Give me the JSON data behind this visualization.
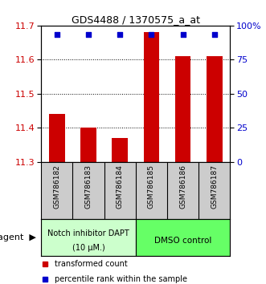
{
  "title": "GDS4488 / 1370575_a_at",
  "samples": [
    "GSM786182",
    "GSM786183",
    "GSM786184",
    "GSM786185",
    "GSM786186",
    "GSM786187"
  ],
  "bar_values": [
    11.44,
    11.4,
    11.37,
    11.68,
    11.61,
    11.61
  ],
  "bar_color": "#cc0000",
  "dot_color": "#0000cc",
  "dot_size": 18,
  "ylim_left": [
    11.3,
    11.7
  ],
  "yticks_left": [
    11.3,
    11.4,
    11.5,
    11.6,
    11.7
  ],
  "yticks_right": [
    0,
    25,
    50,
    75,
    100
  ],
  "ytick_labels_right": [
    "0",
    "25",
    "50",
    "75",
    "100%"
  ],
  "grid_lines": [
    11.4,
    11.5,
    11.6
  ],
  "group1_label_line1": "Notch inhibitor DAPT",
  "group1_label_line2": "(10 μM.)",
  "group2_label": "DMSO control",
  "group1_color": "#ccffcc",
  "group2_color": "#66ff66",
  "group1_indices": [
    0,
    1,
    2
  ],
  "group2_indices": [
    3,
    4,
    5
  ],
  "bar_width": 0.5,
  "agent_label": "agent",
  "legend_bar_label": "transformed count",
  "legend_dot_label": "percentile rank within the sample",
  "background_color": "#ffffff",
  "sample_area_color": "#cccccc",
  "tick_label_color_left": "#cc0000",
  "tick_label_color_right": "#0000cc",
  "title_fontsize": 9,
  "tick_fontsize": 8,
  "sample_fontsize": 6.5,
  "group_fontsize": 7,
  "legend_fontsize": 7,
  "agent_fontsize": 8
}
